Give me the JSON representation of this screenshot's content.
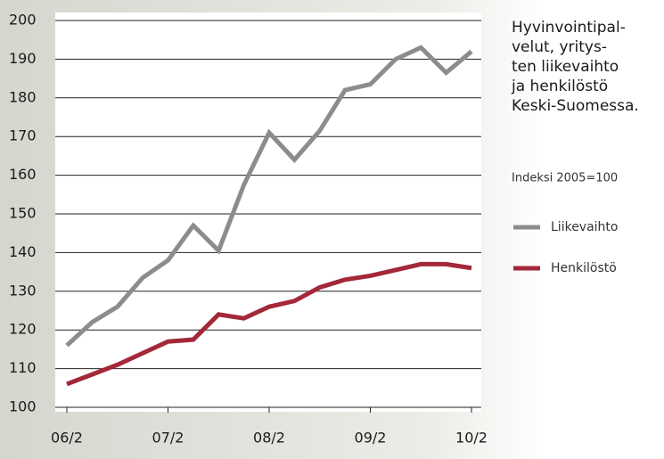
{
  "chart_data": {
    "type": "line",
    "title": [
      "Hyvinvointipal-",
      "velut, yritys-",
      "ten liikevaihto",
      "ja henkilöstö",
      "Keski-Suomessa."
    ],
    "subtitle": "Indeksi 2005=100",
    "categories": [
      "06/2",
      null,
      null,
      null,
      "07/2",
      null,
      null,
      null,
      "08/2",
      null,
      null,
      null,
      "09/2",
      null,
      null,
      null,
      "10/2"
    ],
    "series": [
      {
        "name": "Liikevaihto",
        "color": "#8c8c8c",
        "values": [
          116,
          122,
          126,
          133.5,
          138,
          147,
          140.5,
          157.5,
          171,
          164,
          171.5,
          182,
          183.5,
          190,
          193,
          186.5,
          192
        ]
      },
      {
        "name": "Henkilöstö",
        "color": "#a3283a",
        "values": [
          106,
          108.5,
          111,
          114,
          117,
          117.5,
          124,
          123,
          126,
          127.5,
          131,
          133,
          134,
          135.5,
          137,
          137,
          136
        ]
      }
    ],
    "ylim": [
      100,
      200
    ],
    "yticks": [
      100,
      110,
      120,
      130,
      140,
      150,
      160,
      170,
      180,
      190,
      200
    ],
    "grid": true
  }
}
